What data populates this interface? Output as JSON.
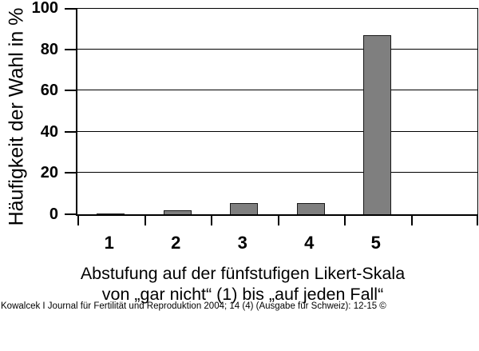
{
  "chart_data": {
    "type": "bar",
    "categories": [
      "1",
      "2",
      "3",
      "4",
      "5"
    ],
    "values": [
      0.4,
      2.1,
      5.5,
      5.5,
      87
    ],
    "title": "",
    "xlabel_line1": "Abstufung auf der fünfstufigen Likert-Skala",
    "xlabel_line2": "von „gar nicht“ (1) bis „auf jeden Fall“",
    "ylabel": "Häufigkeit der Wahl in %",
    "ylim": [
      0,
      100
    ],
    "yticks": [
      0,
      20,
      40,
      60,
      80,
      100
    ],
    "grid": true,
    "legend": "none",
    "bar_color": "#7f7f7f",
    "bar_border_color": "#1a1a1a",
    "axis_color": "#000000"
  },
  "footer": {
    "citation": "Kowalcek I Journal für Fertilität und Reproduktion 2004; 14 (4) (Ausgabe für Schweiz): 12-15 ©"
  }
}
